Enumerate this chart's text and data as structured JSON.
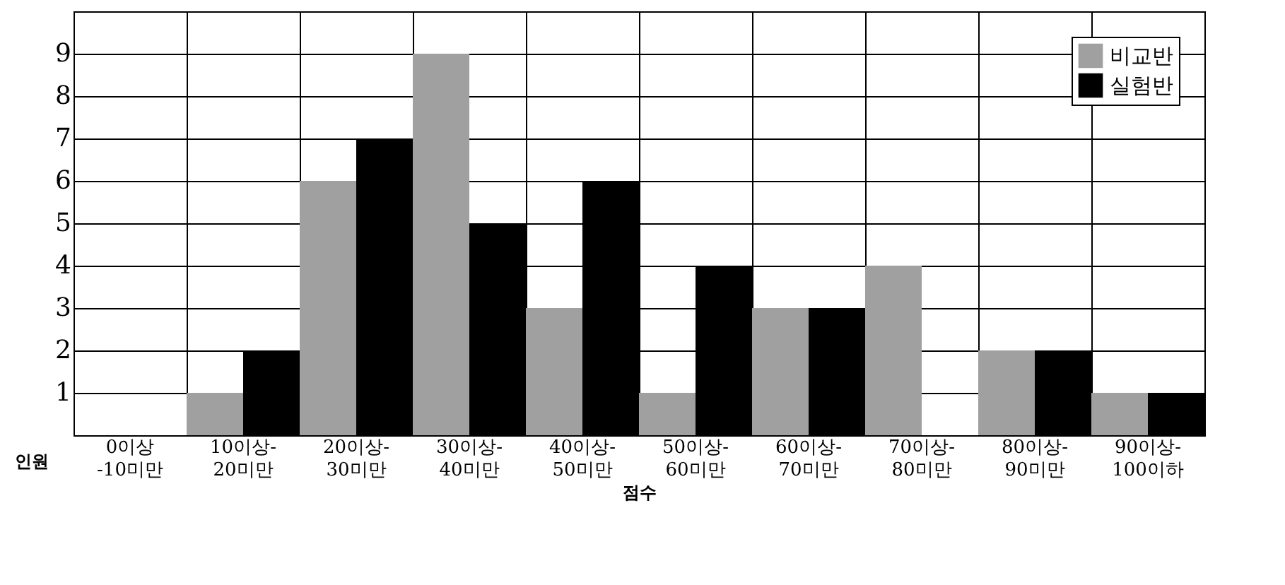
{
  "chart_data": {
    "type": "bar",
    "xlabel": "점수",
    "ylabel": "인원",
    "categories": [
      "0이상\n-10미만",
      "10이상-\n20미만",
      "20이상-\n30미만",
      "30이상-\n40미만",
      "40이상-\n50미만",
      "50이상-\n60미만",
      "60이상-\n70미만",
      "70이상-\n80미만",
      "80이상-\n90미만",
      "90이상-\n100이하"
    ],
    "series": [
      {
        "name": "비교반",
        "color": "#a0a0a0",
        "values": [
          0,
          1,
          6,
          9,
          3,
          1,
          3,
          4,
          2,
          1
        ]
      },
      {
        "name": "실험반",
        "color": "#000000",
        "values": [
          0,
          2,
          7,
          5,
          6,
          4,
          3,
          0,
          2,
          1
        ]
      }
    ],
    "ylim": [
      0,
      10
    ],
    "yticks": [
      1,
      2,
      3,
      4,
      5,
      6,
      7,
      8,
      9
    ],
    "grid": true,
    "legend": "top right"
  }
}
